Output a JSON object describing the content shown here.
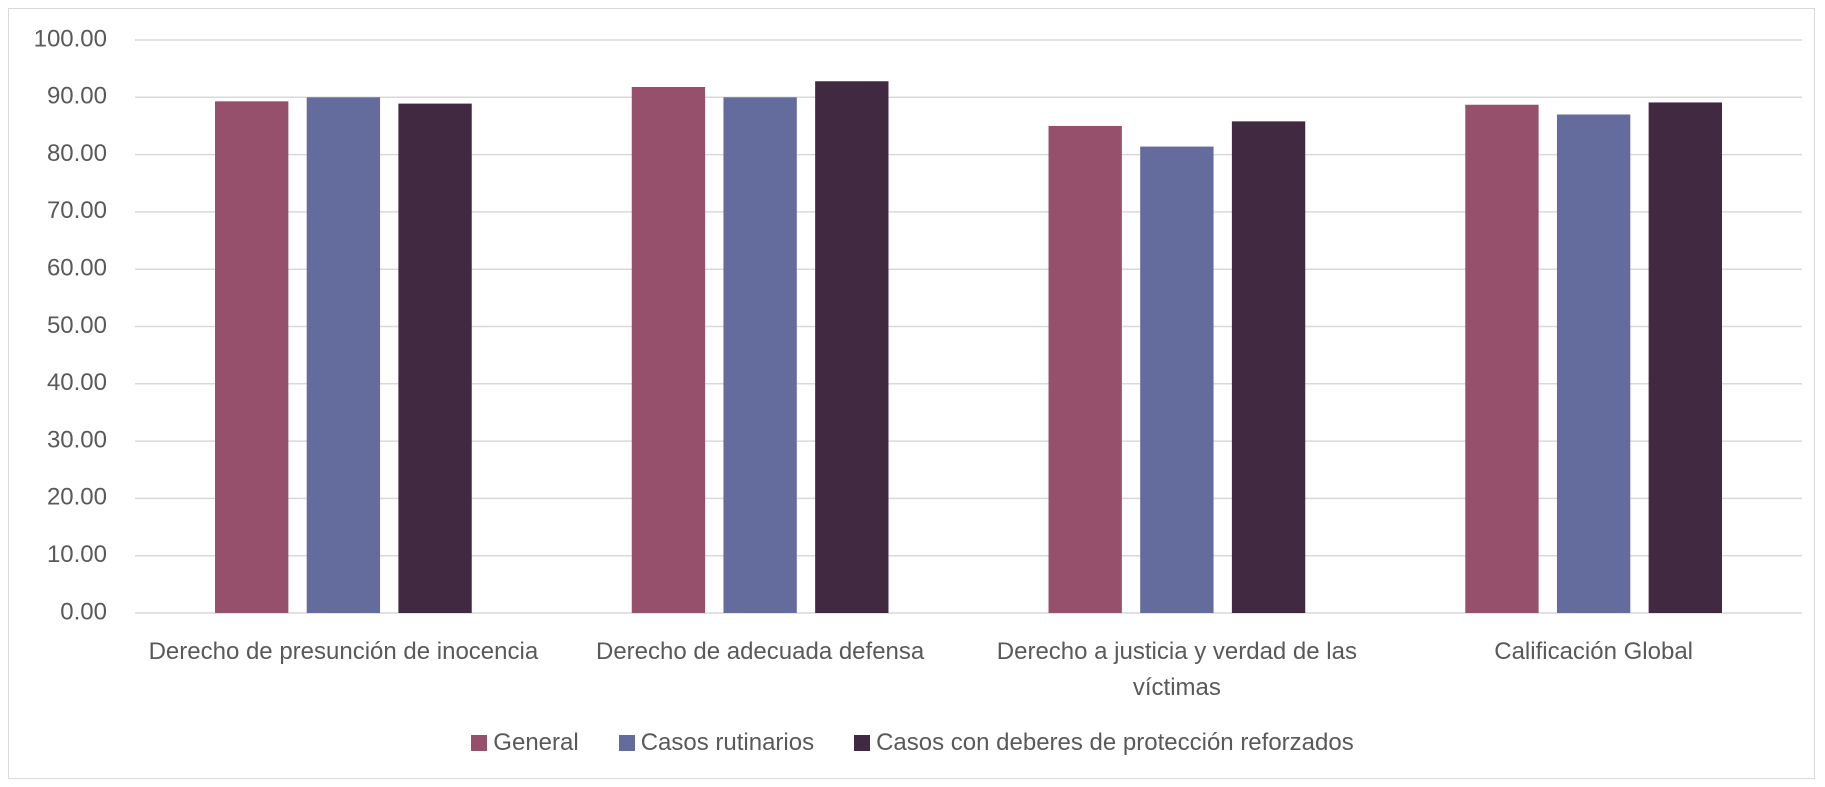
{
  "chart_data": {
    "type": "bar",
    "categories": [
      "Derecho de presunción de inocencia",
      "Derecho de adecuada defensa",
      "Derecho a justicia y verdad de las víctimas",
      "Calificación Global"
    ],
    "series": [
      {
        "name": "General",
        "color": "#97506b",
        "values": [
          89.3,
          91.8,
          85.0,
          88.7
        ]
      },
      {
        "name": "Casos rutinarios",
        "color": "#636c9d",
        "values": [
          90.0,
          90.0,
          81.4,
          87.0
        ]
      },
      {
        "name": "Casos con deberes de protección reforzados",
        "color": "#422942",
        "values": [
          88.9,
          92.8,
          85.8,
          89.1
        ]
      }
    ],
    "ylim": [
      0,
      100
    ],
    "yticks": [
      {
        "value": 0,
        "label": "0.00"
      },
      {
        "value": 10,
        "label": "10.00"
      },
      {
        "value": 20,
        "label": "20.00"
      },
      {
        "value": 30,
        "label": "30.00"
      },
      {
        "value": 40,
        "label": "40.00"
      },
      {
        "value": 50,
        "label": "50.00"
      },
      {
        "value": 60,
        "label": "60.00"
      },
      {
        "value": 70,
        "label": "70.00"
      },
      {
        "value": 80,
        "label": "80.00"
      },
      {
        "value": 90,
        "label": "90.00"
      },
      {
        "value": 100,
        "label": "100.00"
      }
    ],
    "grid": true,
    "legend": "bottom"
  }
}
